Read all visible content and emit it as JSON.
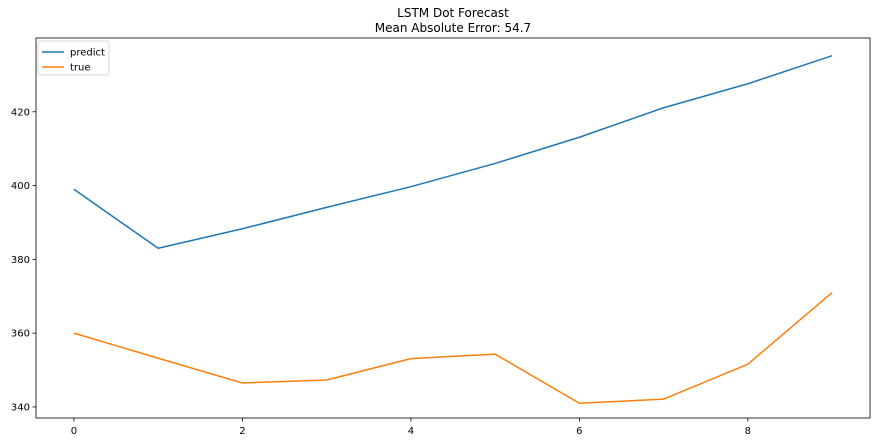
{
  "chart_data": {
    "type": "line",
    "title": "LSTM Dot Forecast",
    "subtitle": "Mean Absolute Error: 54.7",
    "x": [
      0,
      1,
      2,
      3,
      4,
      5,
      6,
      7,
      8,
      9
    ],
    "xlim": [
      -0.45,
      9.45
    ],
    "ylim": [
      337.0,
      440.0
    ],
    "xticks": [
      0,
      2,
      4,
      6,
      8
    ],
    "yticks": [
      340,
      360,
      380,
      400,
      420
    ],
    "grid": false,
    "legend_position": "upper-left",
    "series": [
      {
        "name": "predict",
        "color": "#1f77b4",
        "values": [
          399.0,
          383.0,
          388.3,
          394.1,
          399.7,
          406.0,
          413.1,
          421.1,
          427.6,
          435.2
        ]
      },
      {
        "name": "true",
        "color": "#ff7f0e",
        "values": [
          360.0,
          353.2,
          346.5,
          347.3,
          353.1,
          354.3,
          341.0,
          342.1,
          351.6,
          371.0
        ]
      }
    ]
  }
}
